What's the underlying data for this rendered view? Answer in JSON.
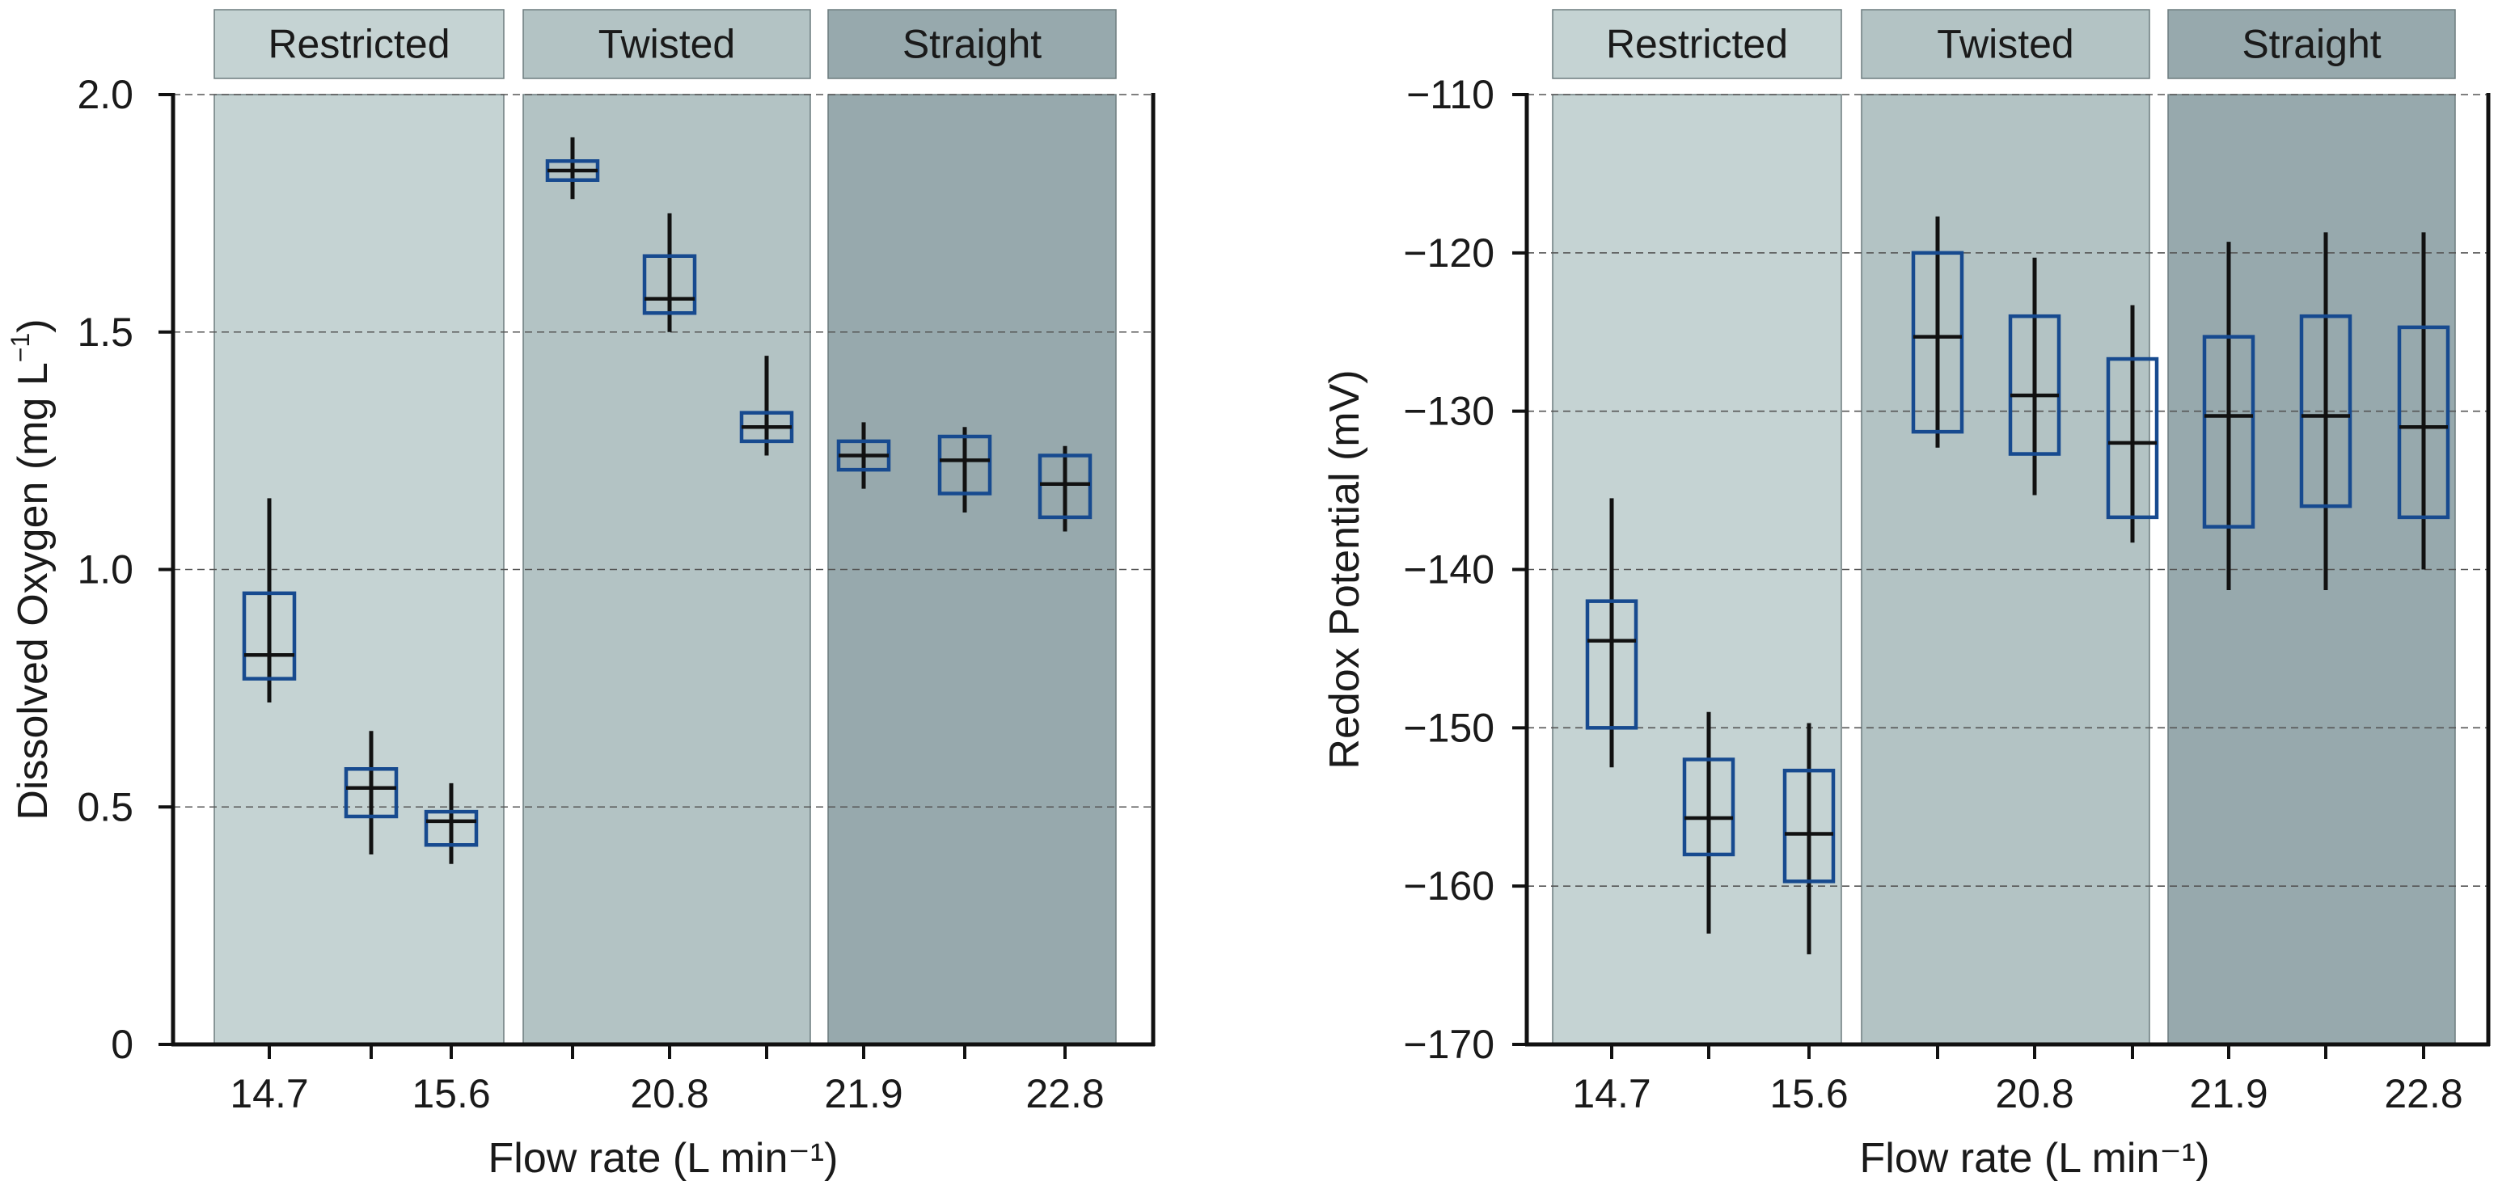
{
  "chart_data": [
    {
      "type": "box",
      "title": "",
      "xlabel": "Flow rate (L min⁻¹)",
      "ylabel_main": "Dissolved Oxygen (mg L",
      "ylabel_sup": "−1",
      "ylabel_close": ")",
      "ylim": [
        0,
        2.0
      ],
      "yticks": [
        0,
        0.5,
        1.0,
        1.5,
        2.0
      ],
      "ytick_labels": [
        "0",
        "0.5",
        "1.0",
        "1.5",
        "2.0"
      ],
      "grid": "horizontal dashed",
      "xtick_labels": [
        "14.7",
        "15.6",
        "20.8",
        "21.9",
        "22.8"
      ],
      "regions": [
        {
          "name": "Restricted",
          "color": "#c5d3d3",
          "header_color": "#c5d3d3"
        },
        {
          "name": "Twisted",
          "color": "#b3c3c4",
          "header_color": "#b3c3c4"
        },
        {
          "name": "Straight",
          "color": "#97a9ad",
          "header_color": "#97a9ad"
        }
      ],
      "boxes": [
        {
          "region": "Restricted",
          "q1": 0.77,
          "median": 0.82,
          "q3": 0.95,
          "min": 0.72,
          "max": 1.15
        },
        {
          "region": "Restricted",
          "q1": 0.48,
          "median": 0.54,
          "q3": 0.58,
          "min": 0.4,
          "max": 0.66
        },
        {
          "region": "Restricted",
          "q1": 0.42,
          "median": 0.47,
          "q3": 0.49,
          "min": 0.38,
          "max": 0.55
        },
        {
          "region": "Twisted",
          "q1": 1.82,
          "median": 1.84,
          "q3": 1.86,
          "min": 1.78,
          "max": 1.91
        },
        {
          "region": "Twisted",
          "q1": 1.54,
          "median": 1.57,
          "q3": 1.66,
          "min": 1.5,
          "max": 1.75
        },
        {
          "region": "Twisted",
          "q1": 1.27,
          "median": 1.3,
          "q3": 1.33,
          "min": 1.24,
          "max": 1.45
        },
        {
          "region": "Straight",
          "q1": 1.21,
          "median": 1.24,
          "q3": 1.27,
          "min": 1.17,
          "max": 1.31
        },
        {
          "region": "Straight",
          "q1": 1.16,
          "median": 1.23,
          "q3": 1.28,
          "min": 1.12,
          "max": 1.3
        },
        {
          "region": "Straight",
          "q1": 1.11,
          "median": 1.18,
          "q3": 1.24,
          "min": 1.08,
          "max": 1.26
        }
      ]
    },
    {
      "type": "box",
      "title": "",
      "xlabel": "Flow rate (L min⁻¹)",
      "ylabel_main": "Redox Potential (mV)",
      "ylabel_sup": "",
      "ylabel_close": "",
      "ylim": [
        -170,
        -110
      ],
      "yticks": [
        -170,
        -160,
        -150,
        -140,
        -130,
        -120,
        -110
      ],
      "ytick_labels": [
        "−170",
        "−160",
        "−150",
        "−140",
        "−130",
        "−120",
        "−110"
      ],
      "grid": "horizontal dashed",
      "xtick_labels": [
        "14.7",
        "15.6",
        "20.8",
        "21.9",
        "22.8"
      ],
      "regions": [
        {
          "name": "Restricted",
          "color": "#c5d3d3",
          "header_color": "#c5d3d3"
        },
        {
          "name": "Twisted",
          "color": "#b3c3c4",
          "header_color": "#b3c3c4"
        },
        {
          "name": "Straight",
          "color": "#97a9ad",
          "header_color": "#97a9ad"
        }
      ],
      "boxes": [
        {
          "region": "Restricted",
          "q1": -150,
          "median": -144.5,
          "q3": -142,
          "min": -152.5,
          "max": -135.5
        },
        {
          "region": "Restricted",
          "q1": -158,
          "median": -155.7,
          "q3": -152,
          "min": -163,
          "max": -149
        },
        {
          "region": "Restricted",
          "q1": -159.7,
          "median": -156.7,
          "q3": -152.7,
          "min": -164.3,
          "max": -149.7
        },
        {
          "region": "Twisted",
          "q1": -131.3,
          "median": -125.3,
          "q3": -120,
          "min": -132.3,
          "max": -117.7
        },
        {
          "region": "Twisted",
          "q1": -132.7,
          "median": -129,
          "q3": -124,
          "min": -135.3,
          "max": -120.3
        },
        {
          "region": "Twisted",
          "q1": -136.7,
          "median": -132,
          "q3": -126.7,
          "min": -138.3,
          "max": -123.3
        },
        {
          "region": "Straight",
          "q1": -137.3,
          "median": -130.3,
          "q3": -125.3,
          "min": -141.3,
          "max": -119.3
        },
        {
          "region": "Straight",
          "q1": -136,
          "median": -130.3,
          "q3": -124,
          "min": -141.3,
          "max": -118.7
        },
        {
          "region": "Straight",
          "q1": -136.7,
          "median": -131,
          "q3": -124.7,
          "min": -140,
          "max": -118.7
        }
      ]
    }
  ],
  "colors": {
    "box_stroke": "#174a8f",
    "whisker": "#111111",
    "grid": "#555555",
    "axis": "#111111",
    "text": "#1a1a1a"
  }
}
